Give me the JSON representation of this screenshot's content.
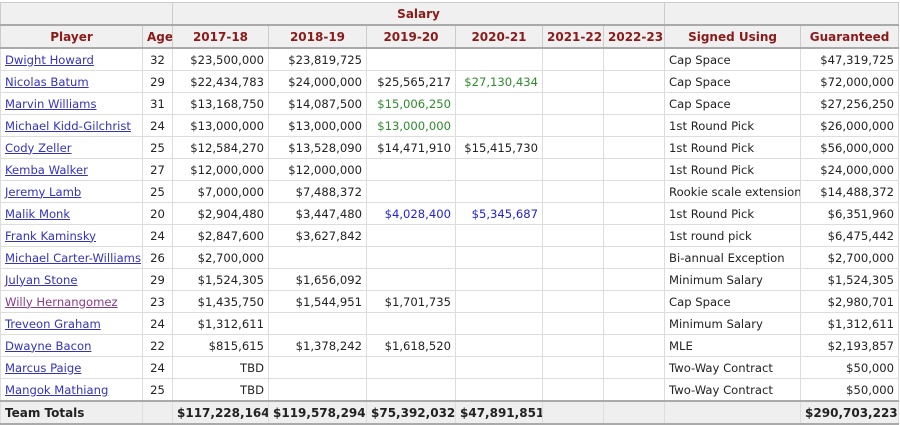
{
  "header": {
    "group_salary": "Salary",
    "columns": [
      "Player",
      "Age",
      "2017-18",
      "2018-19",
      "2019-20",
      "2020-21",
      "2021-22",
      "2022-23",
      "Signed Using",
      "Guaranteed"
    ]
  },
  "colors": {
    "green": "#2e8b2e",
    "blue": "#2222dd",
    "header_text": "#8b1a1a",
    "link": "#3333bb",
    "visited_link": "#8a3a8a"
  },
  "rows": [
    {
      "player": "Dwight Howard",
      "age": "32",
      "salaries": [
        "$23,500,000",
        "$23,819,725",
        "",
        "",
        "",
        ""
      ],
      "colors": [
        "",
        "",
        "",
        "",
        "",
        ""
      ],
      "signed": "Cap Space",
      "guaranteed": "$47,319,725"
    },
    {
      "player": "Nicolas Batum",
      "age": "29",
      "salaries": [
        "$22,434,783",
        "$24,000,000",
        "$25,565,217",
        "$27,130,434",
        "",
        ""
      ],
      "colors": [
        "",
        "",
        "",
        "green",
        "",
        ""
      ],
      "signed": "Cap Space",
      "guaranteed": "$72,000,000"
    },
    {
      "player": "Marvin Williams",
      "age": "31",
      "salaries": [
        "$13,168,750",
        "$14,087,500",
        "$15,006,250",
        "",
        "",
        ""
      ],
      "colors": [
        "",
        "",
        "green",
        "",
        "",
        ""
      ],
      "signed": "Cap Space",
      "guaranteed": "$27,256,250"
    },
    {
      "player": "Michael Kidd-Gilchrist",
      "age": "24",
      "salaries": [
        "$13,000,000",
        "$13,000,000",
        "$13,000,000",
        "",
        "",
        ""
      ],
      "colors": [
        "",
        "",
        "green",
        "",
        "",
        ""
      ],
      "signed": "1st Round Pick",
      "guaranteed": "$26,000,000"
    },
    {
      "player": "Cody Zeller",
      "age": "25",
      "salaries": [
        "$12,584,270",
        "$13,528,090",
        "$14,471,910",
        "$15,415,730",
        "",
        ""
      ],
      "colors": [
        "",
        "",
        "",
        "",
        "",
        ""
      ],
      "signed": "1st Round Pick",
      "guaranteed": "$56,000,000"
    },
    {
      "player": "Kemba Walker",
      "age": "27",
      "salaries": [
        "$12,000,000",
        "$12,000,000",
        "",
        "",
        "",
        ""
      ],
      "colors": [
        "",
        "",
        "",
        "",
        "",
        ""
      ],
      "signed": "1st Round Pick",
      "guaranteed": "$24,000,000"
    },
    {
      "player": "Jeremy Lamb",
      "age": "25",
      "salaries": [
        "$7,000,000",
        "$7,488,372",
        "",
        "",
        "",
        ""
      ],
      "colors": [
        "",
        "",
        "",
        "",
        "",
        ""
      ],
      "signed": "Rookie scale extension",
      "guaranteed": "$14,488,372"
    },
    {
      "player": "Malik Monk",
      "age": "20",
      "salaries": [
        "$2,904,480",
        "$3,447,480",
        "$4,028,400",
        "$5,345,687",
        "",
        ""
      ],
      "colors": [
        "",
        "",
        "blue",
        "blue",
        "",
        ""
      ],
      "signed": "1st Round Pick",
      "guaranteed": "$6,351,960"
    },
    {
      "player": "Frank Kaminsky",
      "age": "24",
      "salaries": [
        "$2,847,600",
        "$3,627,842",
        "",
        "",
        "",
        ""
      ],
      "colors": [
        "",
        "",
        "",
        "",
        "",
        ""
      ],
      "signed": "1st round pick",
      "guaranteed": "$6,475,442"
    },
    {
      "player": "Michael Carter-Williams",
      "age": "26",
      "salaries": [
        "$2,700,000",
        "",
        "",
        "",
        "",
        ""
      ],
      "colors": [
        "",
        "",
        "",
        "",
        "",
        ""
      ],
      "signed": "Bi-annual Exception",
      "guaranteed": "$2,700,000"
    },
    {
      "player": "Julyan Stone",
      "age": "29",
      "salaries": [
        "$1,524,305",
        "$1,656,092",
        "",
        "",
        "",
        ""
      ],
      "colors": [
        "",
        "",
        "",
        "",
        "",
        ""
      ],
      "signed": "Minimum Salary",
      "guaranteed": "$1,524,305"
    },
    {
      "player": "Willy Hernangomez",
      "age": "23",
      "salaries": [
        "$1,435,750",
        "$1,544,951",
        "$1,701,735",
        "",
        "",
        ""
      ],
      "colors": [
        "",
        "",
        "",
        "",
        "",
        ""
      ],
      "signed": "Cap Space",
      "guaranteed": "$2,980,701",
      "visited": true
    },
    {
      "player": "Treveon Graham",
      "age": "24",
      "salaries": [
        "$1,312,611",
        "",
        "",
        "",
        "",
        ""
      ],
      "colors": [
        "",
        "",
        "",
        "",
        "",
        ""
      ],
      "signed": "Minimum Salary",
      "guaranteed": "$1,312,611"
    },
    {
      "player": "Dwayne Bacon",
      "age": "22",
      "salaries": [
        "$815,615",
        "$1,378,242",
        "$1,618,520",
        "",
        "",
        ""
      ],
      "colors": [
        "",
        "",
        "",
        "",
        "",
        ""
      ],
      "signed": "MLE",
      "guaranteed": "$2,193,857"
    },
    {
      "player": "Marcus Paige",
      "age": "24",
      "salaries": [
        "TBD",
        "",
        "",
        "",
        "",
        ""
      ],
      "colors": [
        "",
        "",
        "",
        "",
        "",
        ""
      ],
      "signed": "Two-Way Contract",
      "guaranteed": "$50,000"
    },
    {
      "player": "Mangok Mathiang",
      "age": "25",
      "salaries": [
        "TBD",
        "",
        "",
        "",
        "",
        ""
      ],
      "colors": [
        "",
        "",
        "",
        "",
        "",
        ""
      ],
      "signed": "Two-Way Contract",
      "guaranteed": "$50,000"
    }
  ],
  "totals": {
    "label": "Team Totals",
    "salaries": [
      "$117,228,164",
      "$119,578,294",
      "$75,392,032",
      "$47,891,851",
      "",
      ""
    ],
    "guaranteed": "$290,703,223"
  }
}
